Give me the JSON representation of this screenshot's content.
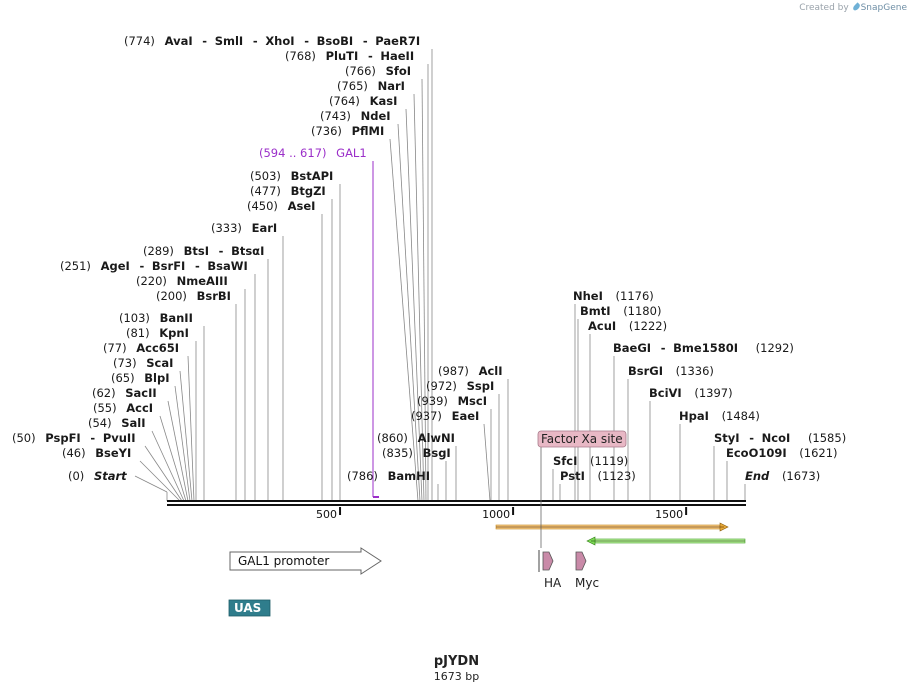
{
  "credit": {
    "prefix": "Created by",
    "brand": "SnapGene"
  },
  "plasmid": {
    "name": "pJYDN",
    "length_text": "1673 bp",
    "length": 1673
  },
  "axis": {
    "ticks": [
      500,
      1000,
      1500
    ]
  },
  "ends": [
    {
      "pos": "(0)",
      "name": "Start",
      "bp": 0
    },
    {
      "pos": "(1673)",
      "name": "End",
      "bp": 1673
    }
  ],
  "sites_left": [
    {
      "pos": "(774)",
      "names": [
        "AvaI",
        "SmlI",
        "XhoI",
        "BsoBI",
        "PaeR7I"
      ],
      "bp": 774
    },
    {
      "pos": "(768)",
      "names": [
        "PluTI",
        "HaeII"
      ],
      "bp": 768
    },
    {
      "pos": "(766)",
      "names": [
        "SfoI"
      ],
      "bp": 766
    },
    {
      "pos": "(765)",
      "names": [
        "NarI"
      ],
      "bp": 765
    },
    {
      "pos": "(764)",
      "names": [
        "KasI"
      ],
      "bp": 764
    },
    {
      "pos": "(743)",
      "names": [
        "NdeI"
      ],
      "bp": 743
    },
    {
      "pos": "(736)",
      "names": [
        "PflMI"
      ],
      "bp": 736
    },
    {
      "pos": "(503)",
      "names": [
        "BstAPI"
      ],
      "bp": 503
    },
    {
      "pos": "(477)",
      "names": [
        "BtgZI"
      ],
      "bp": 477
    },
    {
      "pos": "(450)",
      "names": [
        "AseI"
      ],
      "bp": 450
    },
    {
      "pos": "(333)",
      "names": [
        "EarI"
      ],
      "bp": 333
    },
    {
      "pos": "(289)",
      "names": [
        "BtsI",
        "BtsαI"
      ],
      "bp": 289
    },
    {
      "pos": "(251)",
      "names": [
        "AgeI",
        "BsrFI",
        "BsaWI"
      ],
      "bp": 251
    },
    {
      "pos": "(220)",
      "names": [
        "NmeAIII"
      ],
      "bp": 220
    },
    {
      "pos": "(200)",
      "names": [
        "BsrBI"
      ],
      "bp": 200
    },
    {
      "pos": "(103)",
      "names": [
        "BanII"
      ],
      "bp": 103
    },
    {
      "pos": "(81)",
      "names": [
        "KpnI"
      ],
      "bp": 81
    },
    {
      "pos": "(77)",
      "names": [
        "Acc65I"
      ],
      "bp": 77
    },
    {
      "pos": "(73)",
      "names": [
        "ScaI"
      ],
      "bp": 73
    },
    {
      "pos": "(65)",
      "names": [
        "BlpI"
      ],
      "bp": 65
    },
    {
      "pos": "(62)",
      "names": [
        "SacII"
      ],
      "bp": 62
    },
    {
      "pos": "(55)",
      "names": [
        "AccI"
      ],
      "bp": 55
    },
    {
      "pos": "(54)",
      "names": [
        "SalI"
      ],
      "bp": 54
    },
    {
      "pos": "(50)",
      "names": [
        "PspFI",
        "PvuII"
      ],
      "bp": 50
    },
    {
      "pos": "(46)",
      "names": [
        "BseYI"
      ],
      "bp": 46
    },
    {
      "pos": "(987)",
      "names": [
        "AclI"
      ],
      "bp": 987
    },
    {
      "pos": "(972)",
      "names": [
        "SspI"
      ],
      "bp": 972
    },
    {
      "pos": "(939)",
      "names": [
        "MscI"
      ],
      "bp": 939
    },
    {
      "pos": "(937)",
      "names": [
        "EaeI"
      ],
      "bp": 937
    },
    {
      "pos": "(860)",
      "names": [
        "AlwNI"
      ],
      "bp": 860
    },
    {
      "pos": "(835)",
      "names": [
        "BsgI"
      ],
      "bp": 835
    },
    {
      "pos": "(786)",
      "names": [
        "BamHI"
      ],
      "bp": 786
    }
  ],
  "sites_right": [
    {
      "names": [
        "NheI"
      ],
      "pos": "(1176)",
      "bp": 1176
    },
    {
      "names": [
        "BmtI"
      ],
      "pos": "(1180)",
      "bp": 1180
    },
    {
      "names": [
        "AcuI"
      ],
      "pos": "(1222)",
      "bp": 1222
    },
    {
      "names": [
        "BaeGI",
        "Bme1580I"
      ],
      "pos": "(1292)",
      "bp": 1292
    },
    {
      "names": [
        "BsrGI"
      ],
      "pos": "(1336)",
      "bp": 1336
    },
    {
      "names": [
        "BciVI"
      ],
      "pos": "(1397)",
      "bp": 1397
    },
    {
      "names": [
        "HpaI"
      ],
      "pos": "(1484)",
      "bp": 1484
    },
    {
      "names": [
        "StyI",
        "NcoI"
      ],
      "pos": "(1585)",
      "bp": 1585
    },
    {
      "names": [
        "EcoO109I"
      ],
      "pos": "(1621)",
      "bp": 1621
    },
    {
      "names": [
        "SfcI"
      ],
      "pos": "(1119)",
      "bp": 1119
    },
    {
      "names": [
        "PstI"
      ],
      "pos": "(1123)",
      "bp": 1123
    }
  ],
  "primer": {
    "label": "GAL1",
    "range": "(594 .. 617)",
    "color": "#9b2fc9",
    "start": 594,
    "end": 617
  },
  "features": [
    {
      "label": "GAL1 promoter",
      "type": "promoter"
    },
    {
      "label": "UAS",
      "type": "box",
      "color": "#2f7d8c"
    },
    {
      "label": "Factor Xa site",
      "type": "site",
      "color": "#e8b8c5"
    },
    {
      "label": "HA",
      "type": "tag",
      "color": "#c98aa8"
    },
    {
      "label": "Myc",
      "type": "tag",
      "color": "#c98aa8"
    },
    {
      "label": "",
      "type": "orf-forward",
      "color": "#e6a93a"
    },
    {
      "label": "",
      "type": "orf-reverse",
      "color": "#7ed957"
    }
  ]
}
